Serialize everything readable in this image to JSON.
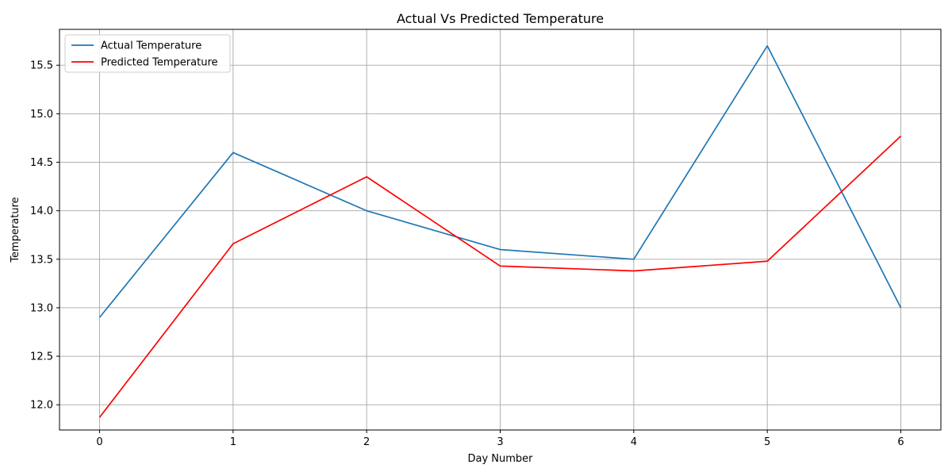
{
  "chart_data": {
    "type": "line",
    "title": "Actual Vs Predicted Temperature",
    "xlabel": "Day Number",
    "ylabel": "Temperature",
    "x": [
      0,
      1,
      2,
      3,
      4,
      5,
      6
    ],
    "xlim": [
      -0.3,
      6.3
    ],
    "ylim": [
      11.74,
      15.87
    ],
    "xticks": [
      0,
      1,
      2,
      3,
      4,
      5,
      6
    ],
    "yticks": [
      12.0,
      12.5,
      13.0,
      13.5,
      14.0,
      14.5,
      15.0,
      15.5
    ],
    "xtick_labels": [
      "0",
      "1",
      "2",
      "3",
      "4",
      "5",
      "6"
    ],
    "ytick_labels": [
      "12.0",
      "12.5",
      "13.0",
      "13.5",
      "14.0",
      "14.5",
      "15.0",
      "15.5"
    ],
    "grid": true,
    "legend_position": "upper-left",
    "series": [
      {
        "name": "Actual Temperature",
        "color": "#1f77b4",
        "values": [
          12.9,
          14.6,
          14.0,
          13.6,
          13.5,
          15.7,
          13.0
        ]
      },
      {
        "name": "Predicted Temperature",
        "color": "#ff0000",
        "values": [
          11.87,
          13.66,
          14.35,
          13.43,
          13.38,
          13.48,
          14.77
        ]
      }
    ]
  }
}
